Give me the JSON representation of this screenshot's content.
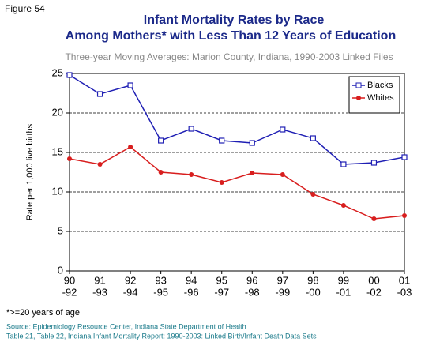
{
  "figure_label": "Figure 54",
  "chart_data": {
    "type": "line",
    "title": [
      "Infant Mortality Rates by Race",
      "Among Mothers* with Less Than 12 Years of Education"
    ],
    "subtitle": "Three-year Moving Averages: Marion County, Indiana, 1990-2003 Linked Files",
    "y_label": "Rate per 1,000 live births",
    "categories": [
      [
        "90",
        "-92"
      ],
      [
        "91",
        "-93"
      ],
      [
        "92",
        "-94"
      ],
      [
        "93",
        "-95"
      ],
      [
        "94",
        "-96"
      ],
      [
        "95",
        "-97"
      ],
      [
        "96",
        "-98"
      ],
      [
        "97",
        "-99"
      ],
      [
        "98",
        "-00"
      ],
      [
        "99",
        "-01"
      ],
      [
        "00",
        "-02"
      ],
      [
        "01",
        "-03"
      ]
    ],
    "series": [
      {
        "name": "Blacks",
        "color": "#1f1fb4",
        "marker": "square",
        "values": [
          24.8,
          22.4,
          23.5,
          16.5,
          18.0,
          16.5,
          16.2,
          17.9,
          16.8,
          13.5,
          13.7,
          14.4
        ]
      },
      {
        "name": "Whites",
        "color": "#d81e1e",
        "marker": "circle",
        "values": [
          14.2,
          13.5,
          15.7,
          12.5,
          12.2,
          11.2,
          12.4,
          12.2,
          9.7,
          8.3,
          6.6,
          7.0
        ]
      }
    ],
    "ylim": [
      0,
      25
    ],
    "yticks": [
      0,
      5,
      10,
      15,
      20,
      25
    ],
    "grid": true,
    "legend": "top-right"
  },
  "footnote": "*>=20 years of age",
  "source": [
    "Source: Epidemiology Resource Center, Indiana State Department of Health",
    "Table 21, Table 22, Indiana Infant Mortality Report: 1990-2003: Linked Birth/Infant Death Data Sets"
  ]
}
